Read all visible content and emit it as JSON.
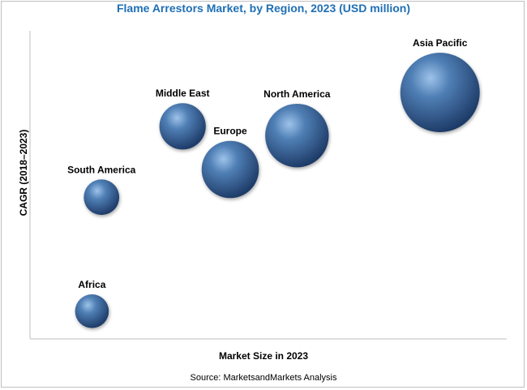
{
  "chart_data": {
    "type": "scatter",
    "title": "Flame Arrestors Market, by Region, 2023 (USD million)",
    "xlabel": "Market Size in 2023",
    "ylabel": "CAGR (2018–2023)",
    "xlim": [
      0,
      100
    ],
    "ylim": [
      0,
      100
    ],
    "grid": false,
    "legend": "none",
    "bubble_color": "#2f5585",
    "points": [
      {
        "label": "Asia Pacific",
        "x": 86,
        "y": 80,
        "size": 100
      },
      {
        "label": "North America",
        "x": 56,
        "y": 66,
        "size": 64
      },
      {
        "label": "Middle East",
        "x": 32,
        "y": 69,
        "size": 34
      },
      {
        "label": "Europe",
        "x": 42,
        "y": 55,
        "size": 52
      },
      {
        "label": "South America",
        "x": 15,
        "y": 46,
        "size": 20
      },
      {
        "label": "Africa",
        "x": 13,
        "y": 9,
        "size": 18
      }
    ]
  },
  "source": "Source: MarketsandMarkets Analysis"
}
